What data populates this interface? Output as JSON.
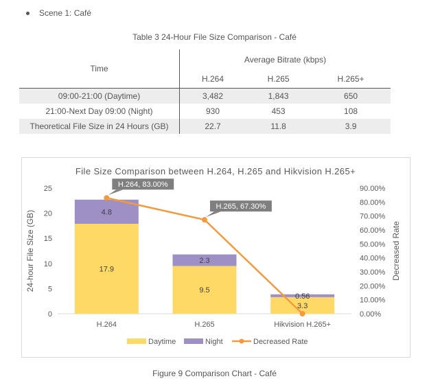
{
  "document": {
    "bullet": "Scene 1: Café",
    "table_title": "Table 3 24-Hour File Size Comparison - Café",
    "figure_caption": "Figure 9    Comparison Chart - Café"
  },
  "table": {
    "row_header": "Time",
    "group_header": "Average Bitrate (kbps)",
    "codecs": [
      "H.264",
      "H.265",
      "H.265+"
    ],
    "rows": [
      {
        "label": "09:00-21:00 (Daytime)",
        "values": [
          "3,482",
          "1,843",
          "650"
        ]
      },
      {
        "label": "21:00-Next Day 09:00 (Night)",
        "values": [
          "930",
          "453",
          "108"
        ]
      },
      {
        "label": "Theoretical File Size in 24 Hours (GB)",
        "values": [
          "22.7",
          "11.8",
          "3.9"
        ]
      }
    ]
  },
  "chart_data": {
    "type": "bar",
    "subtype": "stacked bar with line on secondary axis",
    "title": "File Size Comparison between H.264, H.265 and Hikvision H.265+",
    "categories": [
      "H.264",
      "H.265",
      "Hikvision H.265+"
    ],
    "series": [
      {
        "name": "Daytime",
        "type": "bar",
        "color": "#ffd966",
        "values": [
          17.9,
          9.5,
          3.3
        ],
        "labels": [
          "17.9",
          "9.5",
          "3.3"
        ]
      },
      {
        "name": "Night",
        "type": "bar",
        "color": "#9e8fc4",
        "values": [
          4.8,
          2.3,
          0.56
        ],
        "labels": [
          "4.8",
          "2.3",
          "0.56"
        ]
      },
      {
        "name": "Decreased Rate",
        "type": "line",
        "axis": "secondary",
        "color": "#f59a3c",
        "values": [
          83.0,
          67.3,
          0.0
        ]
      }
    ],
    "callouts": [
      "H.264, 83.00%",
      "H.265, 67.30%"
    ],
    "ylabel": "24-hour File Size (GB)",
    "y2label": "Decreased Rate",
    "ylim": [
      0,
      25
    ],
    "y_ticks": [
      "0",
      "5",
      "10",
      "15",
      "20",
      "25"
    ],
    "y2lim": [
      0,
      90
    ],
    "y2_ticks": [
      "0.00%",
      "10.00%",
      "20.00%",
      "30.00%",
      "40.00%",
      "50.00%",
      "60.00%",
      "70.00%",
      "80.00%",
      "90.00%"
    ],
    "legend_position": "bottom",
    "grid": false
  }
}
